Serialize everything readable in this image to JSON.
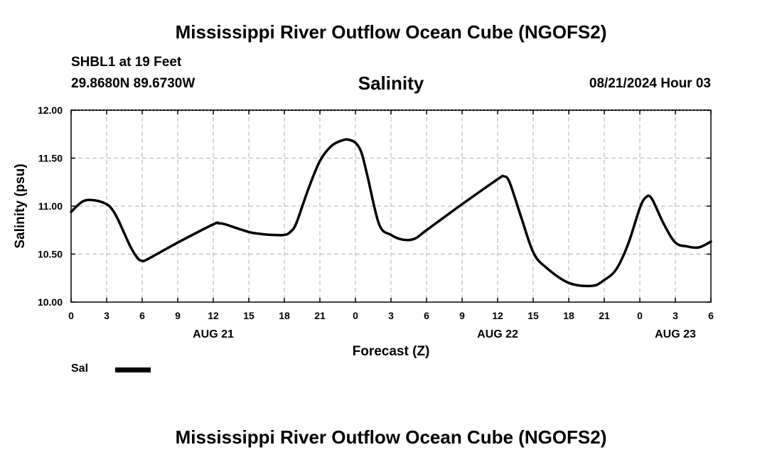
{
  "header": {
    "main_title": "Mississippi River Outflow Ocean Cube (NGOFS2)",
    "station": "SHBL1 at 19 Feet",
    "coordinates": "29.8680N  89.6730W",
    "subtitle": "Salinity",
    "datetime": "08/21/2024 Hour 03"
  },
  "footer": {
    "main_title": "Mississippi River Outflow Ocean Cube (NGOFS2)"
  },
  "legend": {
    "label": "Sal",
    "color": "#000000"
  },
  "chart_data": {
    "type": "line",
    "title": "Salinity",
    "xlabel": "Forecast (Z)",
    "ylabel": "Salinity (psu)",
    "ylim": [
      10.0,
      12.0
    ],
    "yticks": [
      10.0,
      10.5,
      11.0,
      11.5,
      12.0
    ],
    "ytick_labels": [
      "10.00",
      "10.50",
      "11.00",
      "11.50",
      "12.00"
    ],
    "xlim": [
      0,
      54
    ],
    "xticks": [
      0,
      3,
      6,
      9,
      12,
      15,
      18,
      21,
      24,
      27,
      30,
      33,
      36,
      39,
      42,
      45,
      48,
      51,
      54
    ],
    "xtick_labels": [
      "0",
      "3",
      "6",
      "9",
      "12",
      "15",
      "18",
      "21",
      "0",
      "3",
      "6",
      "9",
      "12",
      "15",
      "18",
      "21",
      "0",
      "3",
      "6"
    ],
    "date_labels": [
      {
        "x": 12,
        "label": "AUG 21"
      },
      {
        "x": 36,
        "label": "AUG 22"
      },
      {
        "x": 51,
        "label": "AUG 23"
      }
    ],
    "grid": true,
    "series": [
      {
        "name": "Sal",
        "color": "#000000",
        "x": [
          0,
          1,
          2,
          3,
          3.5,
          4,
          5,
          5.6,
          6,
          6.5,
          9,
          12,
          12.5,
          13,
          15,
          16,
          17,
          18,
          18.5,
          19,
          20,
          21,
          22,
          23,
          23.5,
          24,
          24.5,
          25,
          26,
          27,
          28,
          29,
          30,
          33,
          36,
          36.5,
          37,
          38,
          39,
          40,
          42,
          44,
          45,
          46,
          47,
          48,
          48.5,
          49,
          50,
          51,
          52,
          53,
          54
        ],
        "y": [
          10.94,
          11.05,
          11.06,
          11.02,
          10.96,
          10.85,
          10.58,
          10.46,
          10.43,
          10.45,
          10.62,
          10.81,
          10.82,
          10.81,
          10.73,
          10.71,
          10.7,
          10.7,
          10.73,
          10.82,
          11.17,
          11.47,
          11.63,
          11.69,
          11.69,
          11.66,
          11.56,
          11.32,
          10.81,
          10.7,
          10.65,
          10.66,
          10.75,
          11.02,
          11.28,
          11.31,
          11.25,
          10.88,
          10.52,
          10.37,
          10.2,
          10.17,
          10.23,
          10.34,
          10.6,
          10.98,
          11.09,
          11.08,
          10.82,
          10.62,
          10.58,
          10.57,
          10.63
        ]
      }
    ]
  }
}
